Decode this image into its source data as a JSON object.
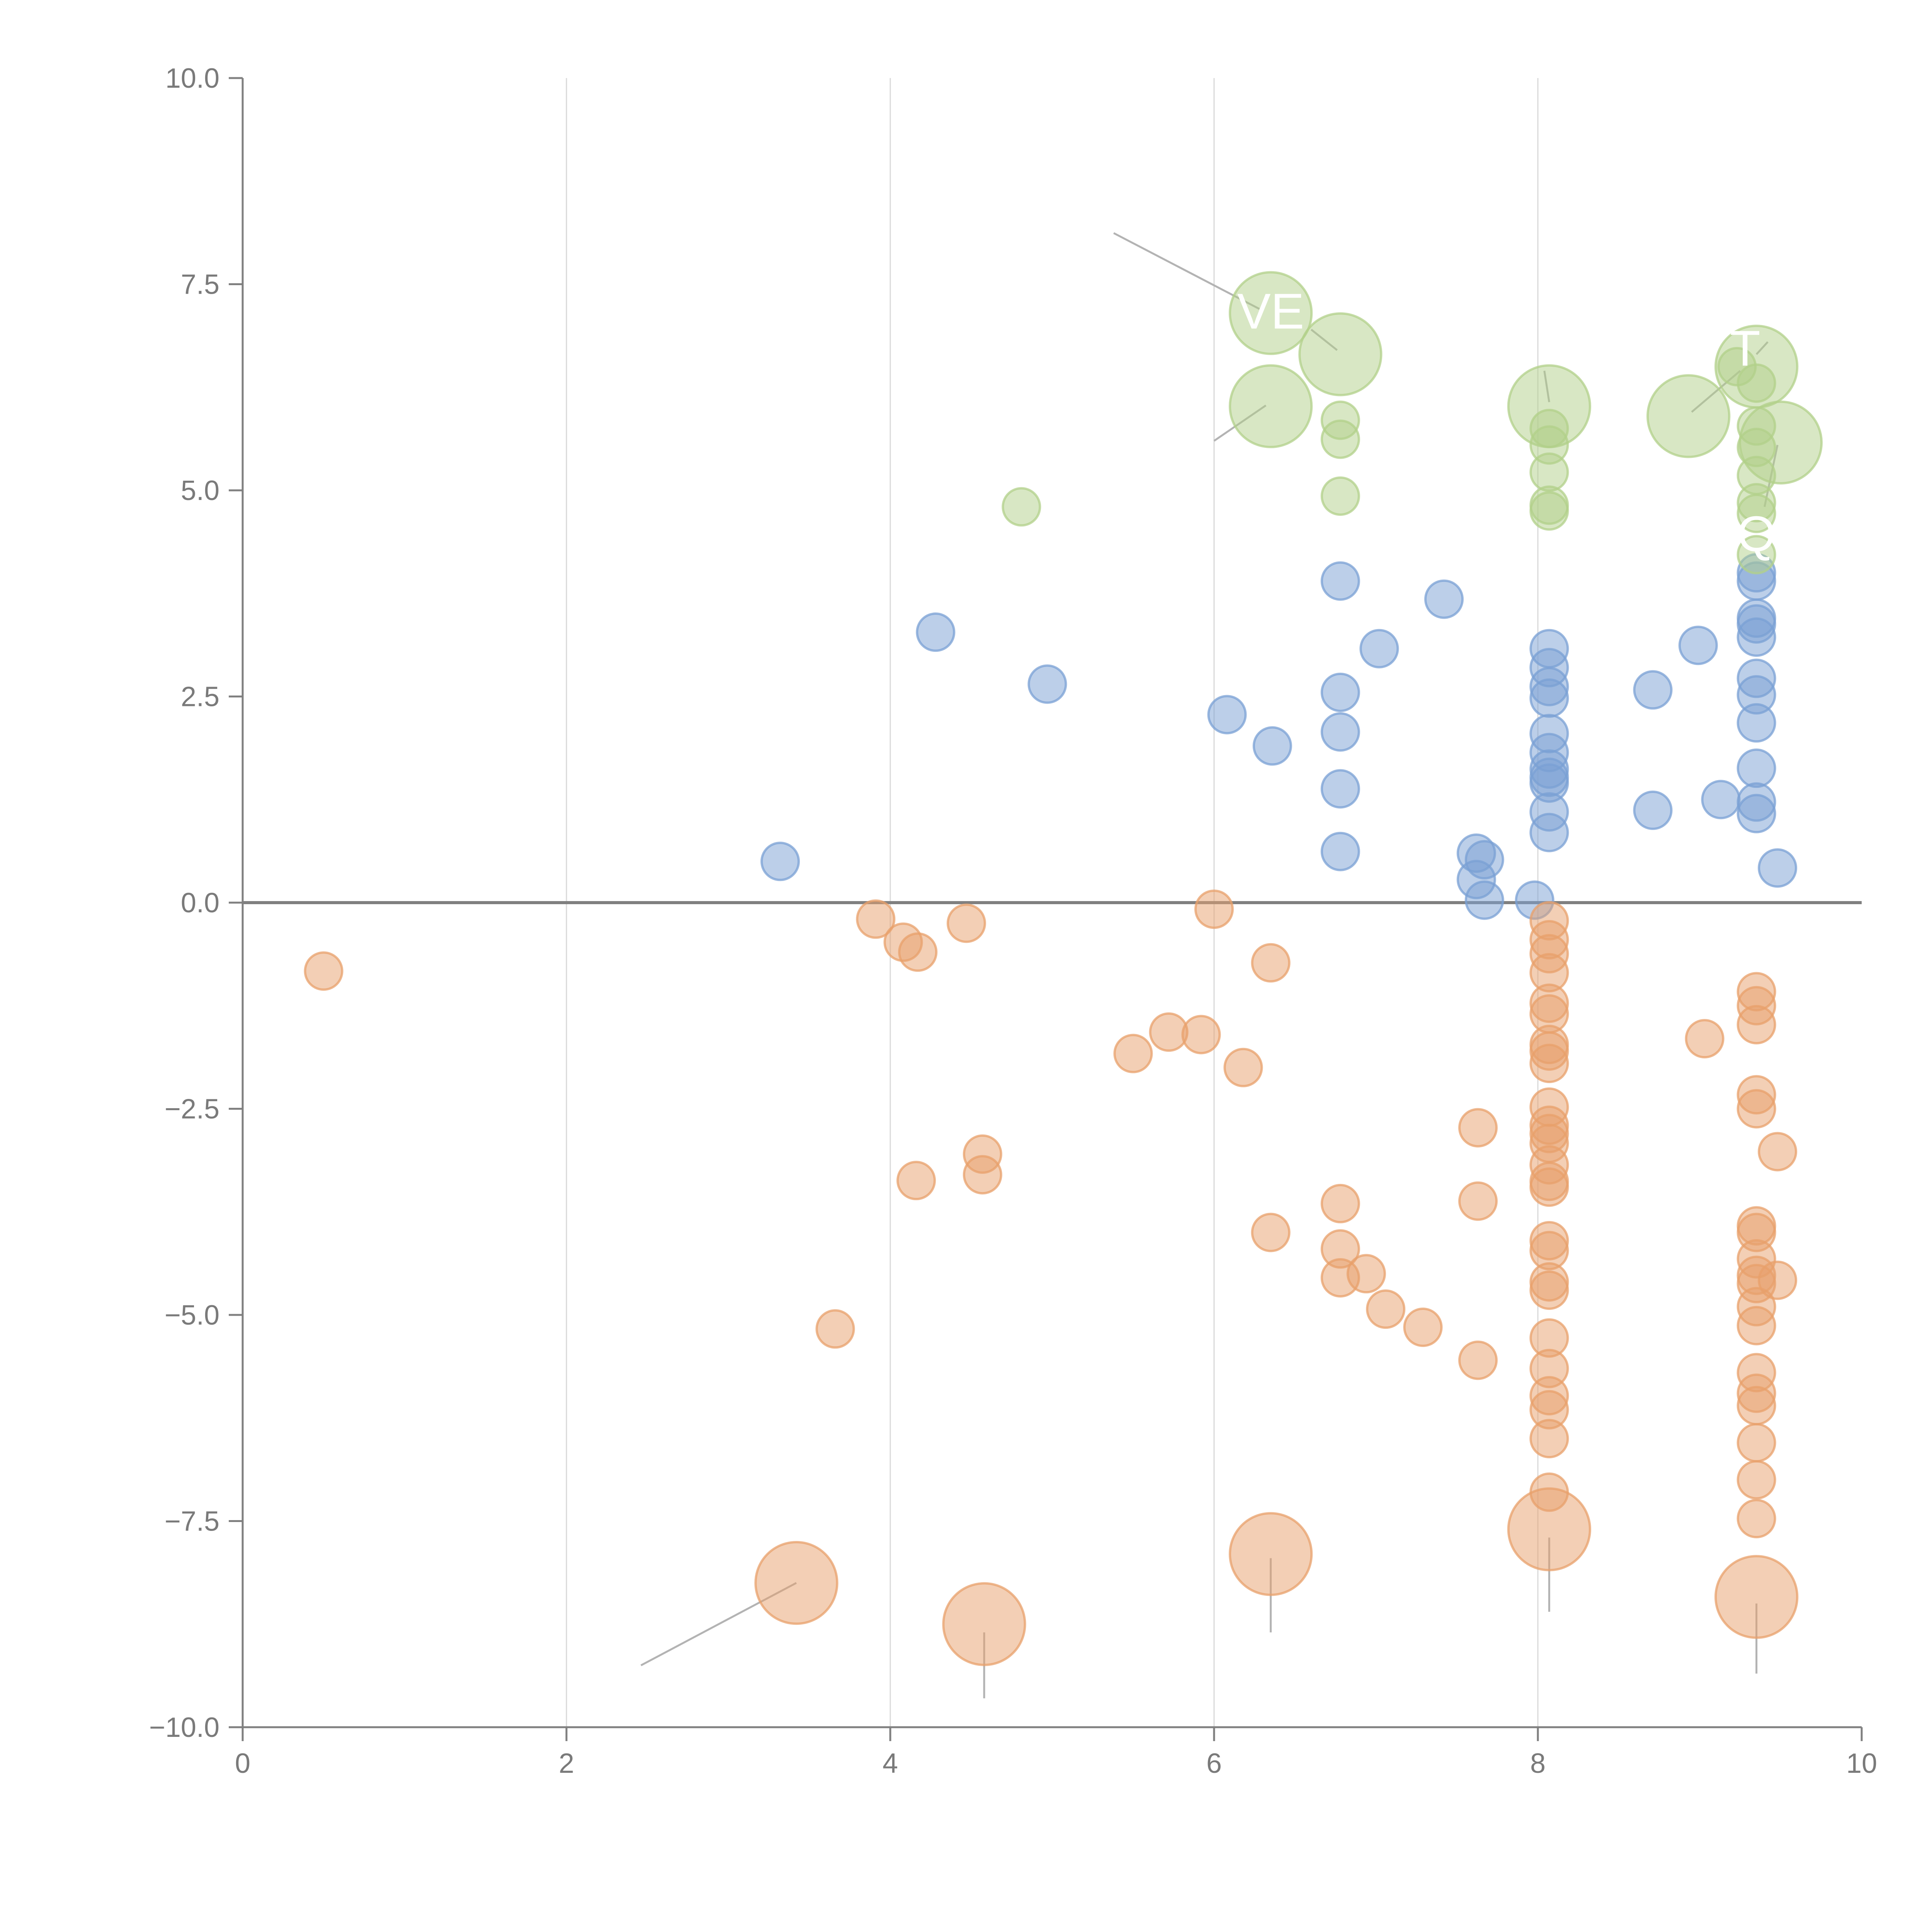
{
  "colors": {
    "positive": "#7aa0d4",
    "negative": "#e8a06b",
    "highlight": "#b1d08a"
  },
  "chart_data": {
    "type": "scatter",
    "title": "",
    "xlabel": "",
    "ylabel": "",
    "xlim": [
      0,
      10
    ],
    "ylim": [
      -10,
      10
    ],
    "grid": "vertical",
    "zero_line": true,
    "x_ticks": [
      "0",
      "2",
      "4",
      "6",
      "8",
      "10"
    ],
    "y_ticks": [
      "10.0",
      "7.5",
      "5.0",
      "2.5",
      "0.0",
      "−2.5",
      "−5.0",
      "−7.5",
      "−10.0"
    ],
    "series": [
      {
        "name": "positive",
        "color_key": "positive",
        "points": [
          [
            3.32,
            0.5,
            1
          ],
          [
            4.28,
            3.28,
            1
          ],
          [
            4.97,
            2.65,
            1
          ],
          [
            6.08,
            2.28,
            1
          ],
          [
            6.36,
            1.9,
            1
          ],
          [
            6.78,
            3.9,
            1
          ],
          [
            6.78,
            2.55,
            1
          ],
          [
            6.78,
            2.07,
            1
          ],
          [
            6.78,
            1.38,
            1
          ],
          [
            6.78,
            0.62,
            1
          ],
          [
            7.02,
            3.08,
            1
          ],
          [
            7.42,
            3.68,
            1
          ],
          [
            7.62,
            0.6,
            1
          ],
          [
            7.62,
            0.28,
            1
          ],
          [
            7.67,
            0.52,
            1
          ],
          [
            7.67,
            0.03,
            1
          ],
          [
            7.98,
            0.03,
            1
          ],
          [
            8.07,
            3.08,
            1
          ],
          [
            8.07,
            2.85,
            1
          ],
          [
            8.07,
            2.62,
            1
          ],
          [
            8.07,
            2.48,
            1
          ],
          [
            8.07,
            2.05,
            1
          ],
          [
            8.07,
            1.82,
            1
          ],
          [
            8.07,
            1.62,
            1
          ],
          [
            8.07,
            1.52,
            1
          ],
          [
            8.07,
            1.45,
            1
          ],
          [
            8.07,
            1.1,
            1
          ],
          [
            8.07,
            0.85,
            1
          ],
          [
            8.71,
            2.58,
            1
          ],
          [
            8.71,
            1.12,
            1
          ],
          [
            8.99,
            3.12,
            1
          ],
          [
            9.13,
            1.25,
            1
          ],
          [
            9.35,
            4.0,
            1
          ],
          [
            9.35,
            3.9,
            1
          ],
          [
            9.35,
            3.45,
            1
          ],
          [
            9.35,
            3.38,
            1
          ],
          [
            9.35,
            3.22,
            1
          ],
          [
            9.35,
            2.72,
            1
          ],
          [
            9.35,
            2.52,
            1
          ],
          [
            9.35,
            2.18,
            1
          ],
          [
            9.35,
            1.63,
            1
          ],
          [
            9.35,
            1.22,
            1
          ],
          [
            9.35,
            1.08,
            1
          ],
          [
            9.48,
            0.42,
            1
          ]
        ]
      },
      {
        "name": "negative",
        "color_key": "negative",
        "points": [
          [
            0.5,
            -0.83,
            1
          ],
          [
            3.42,
            -8.25,
            2.2
          ],
          [
            3.66,
            -5.17,
            1
          ],
          [
            3.91,
            -0.2,
            1
          ],
          [
            4.08,
            -0.48,
            1
          ],
          [
            4.17,
            -0.6,
            1
          ],
          [
            4.16,
            -3.37,
            1
          ],
          [
            4.47,
            -0.25,
            1
          ],
          [
            4.57,
            -3.05,
            1
          ],
          [
            4.57,
            -3.3,
            1
          ],
          [
            4.58,
            -8.75,
            2.2
          ],
          [
            5.5,
            -1.83,
            1
          ],
          [
            5.72,
            -1.57,
            1
          ],
          [
            5.92,
            -1.6,
            1
          ],
          [
            6.0,
            -0.08,
            1
          ],
          [
            6.18,
            -2.0,
            1
          ],
          [
            6.35,
            -0.73,
            1
          ],
          [
            6.35,
            -4.0,
            1
          ],
          [
            6.35,
            -7.9,
            2.2
          ],
          [
            6.78,
            -3.65,
            1
          ],
          [
            6.78,
            -4.2,
            1
          ],
          [
            6.78,
            -4.55,
            1
          ],
          [
            6.94,
            -4.5,
            1
          ],
          [
            7.06,
            -4.93,
            1
          ],
          [
            7.29,
            -5.15,
            1
          ],
          [
            7.63,
            -2.73,
            1
          ],
          [
            7.63,
            -3.62,
            1
          ],
          [
            7.63,
            -5.55,
            1
          ],
          [
            8.07,
            -0.22,
            1
          ],
          [
            8.07,
            -0.45,
            1
          ],
          [
            8.07,
            -0.62,
            1
          ],
          [
            8.07,
            -0.85,
            1
          ],
          [
            8.07,
            -1.22,
            1
          ],
          [
            8.07,
            -1.35,
            1
          ],
          [
            8.07,
            -1.72,
            1
          ],
          [
            8.07,
            -1.8,
            1
          ],
          [
            8.07,
            -1.95,
            1
          ],
          [
            8.07,
            -2.48,
            1
          ],
          [
            8.07,
            -2.7,
            1
          ],
          [
            8.07,
            -2.8,
            1
          ],
          [
            8.07,
            -2.92,
            1
          ],
          [
            8.07,
            -3.18,
            1
          ],
          [
            8.07,
            -3.38,
            1
          ],
          [
            8.07,
            -3.45,
            1
          ],
          [
            8.07,
            -4.1,
            1
          ],
          [
            8.07,
            -4.22,
            1
          ],
          [
            8.07,
            -4.6,
            1
          ],
          [
            8.07,
            -4.7,
            1
          ],
          [
            8.07,
            -5.28,
            1
          ],
          [
            8.07,
            -5.65,
            1
          ],
          [
            8.07,
            -5.98,
            1
          ],
          [
            8.07,
            -6.15,
            1
          ],
          [
            8.07,
            -6.5,
            1
          ],
          [
            8.07,
            -7.15,
            1
          ],
          [
            8.07,
            -7.6,
            2.2
          ],
          [
            9.03,
            -1.65,
            1
          ],
          [
            9.35,
            -1.08,
            1
          ],
          [
            9.35,
            -1.25,
            1
          ],
          [
            9.35,
            -1.48,
            1
          ],
          [
            9.35,
            -2.33,
            1
          ],
          [
            9.35,
            -2.5,
            1
          ],
          [
            9.35,
            -3.92,
            1
          ],
          [
            9.35,
            -4.0,
            1
          ],
          [
            9.35,
            -4.32,
            1
          ],
          [
            9.35,
            -4.52,
            1
          ],
          [
            9.35,
            -4.62,
            1
          ],
          [
            9.35,
            -4.9,
            1
          ],
          [
            9.35,
            -5.13,
            1
          ],
          [
            9.35,
            -5.7,
            1
          ],
          [
            9.35,
            -5.95,
            1
          ],
          [
            9.35,
            -6.1,
            1
          ],
          [
            9.35,
            -6.55,
            1
          ],
          [
            9.35,
            -7.0,
            1
          ],
          [
            9.35,
            -7.47,
            1
          ],
          [
            9.35,
            -8.42,
            2.2
          ],
          [
            9.48,
            -3.02,
            1
          ],
          [
            9.48,
            -4.58,
            1
          ]
        ]
      },
      {
        "name": "highlight",
        "color_key": "highlight",
        "points": [
          [
            4.81,
            4.8,
            1
          ],
          [
            6.35,
            7.15,
            2.2
          ],
          [
            6.35,
            6.02,
            2.2
          ],
          [
            6.78,
            6.65,
            2.2
          ],
          [
            6.78,
            5.85,
            1
          ],
          [
            6.78,
            5.62,
            1
          ],
          [
            6.78,
            4.93,
            1
          ],
          [
            8.07,
            6.02,
            2.2
          ],
          [
            8.07,
            5.75,
            1
          ],
          [
            8.07,
            5.55,
            1
          ],
          [
            8.07,
            5.22,
            1
          ],
          [
            8.07,
            4.82,
            1
          ],
          [
            8.07,
            4.75,
            1
          ],
          [
            8.93,
            5.9,
            2.2
          ],
          [
            9.23,
            6.5,
            1
          ],
          [
            9.35,
            6.5,
            2.2
          ],
          [
            9.35,
            6.3,
            1
          ],
          [
            9.35,
            5.78,
            1
          ],
          [
            9.35,
            5.52,
            1
          ],
          [
            9.35,
            5.18,
            1
          ],
          [
            9.35,
            4.85,
            1
          ],
          [
            9.35,
            4.72,
            1
          ],
          [
            9.35,
            4.22,
            1
          ],
          [
            9.5,
            5.58,
            2.2
          ]
        ]
      }
    ],
    "leader_lines": [
      [
        [
          2.46,
          -9.25
        ],
        [
          3.42,
          -8.25
        ]
      ],
      [
        [
          4.58,
          -9.65
        ],
        [
          4.58,
          -8.85
        ]
      ],
      [
        [
          6.35,
          -8.85
        ],
        [
          6.35,
          -7.95
        ]
      ],
      [
        [
          8.07,
          -8.6
        ],
        [
          8.07,
          -7.7
        ]
      ],
      [
        [
          9.35,
          -9.35
        ],
        [
          9.35,
          -8.5
        ]
      ],
      [
        [
          5.38,
          8.12
        ],
        [
          6.28,
          7.2
        ]
      ],
      [
        [
          6.0,
          5.6
        ],
        [
          6.32,
          6.03
        ]
      ],
      [
        [
          6.6,
          6.95
        ],
        [
          6.76,
          6.7
        ]
      ],
      [
        [
          8.04,
          6.45
        ],
        [
          8.07,
          6.07
        ]
      ],
      [
        [
          8.95,
          5.95
        ],
        [
          9.25,
          6.45
        ]
      ],
      [
        [
          9.35,
          6.65
        ],
        [
          9.42,
          6.8
        ]
      ],
      [
        [
          9.48,
          5.55
        ],
        [
          9.4,
          4.8
        ]
      ]
    ],
    "annotations": [
      {
        "text": "VE",
        "x": 6.35,
        "y": 7.15
      },
      {
        "text": "Q",
        "x": 9.35,
        "y": 4.45
      },
      {
        "text": "T",
        "x": 9.28,
        "y": 6.7
      }
    ]
  }
}
